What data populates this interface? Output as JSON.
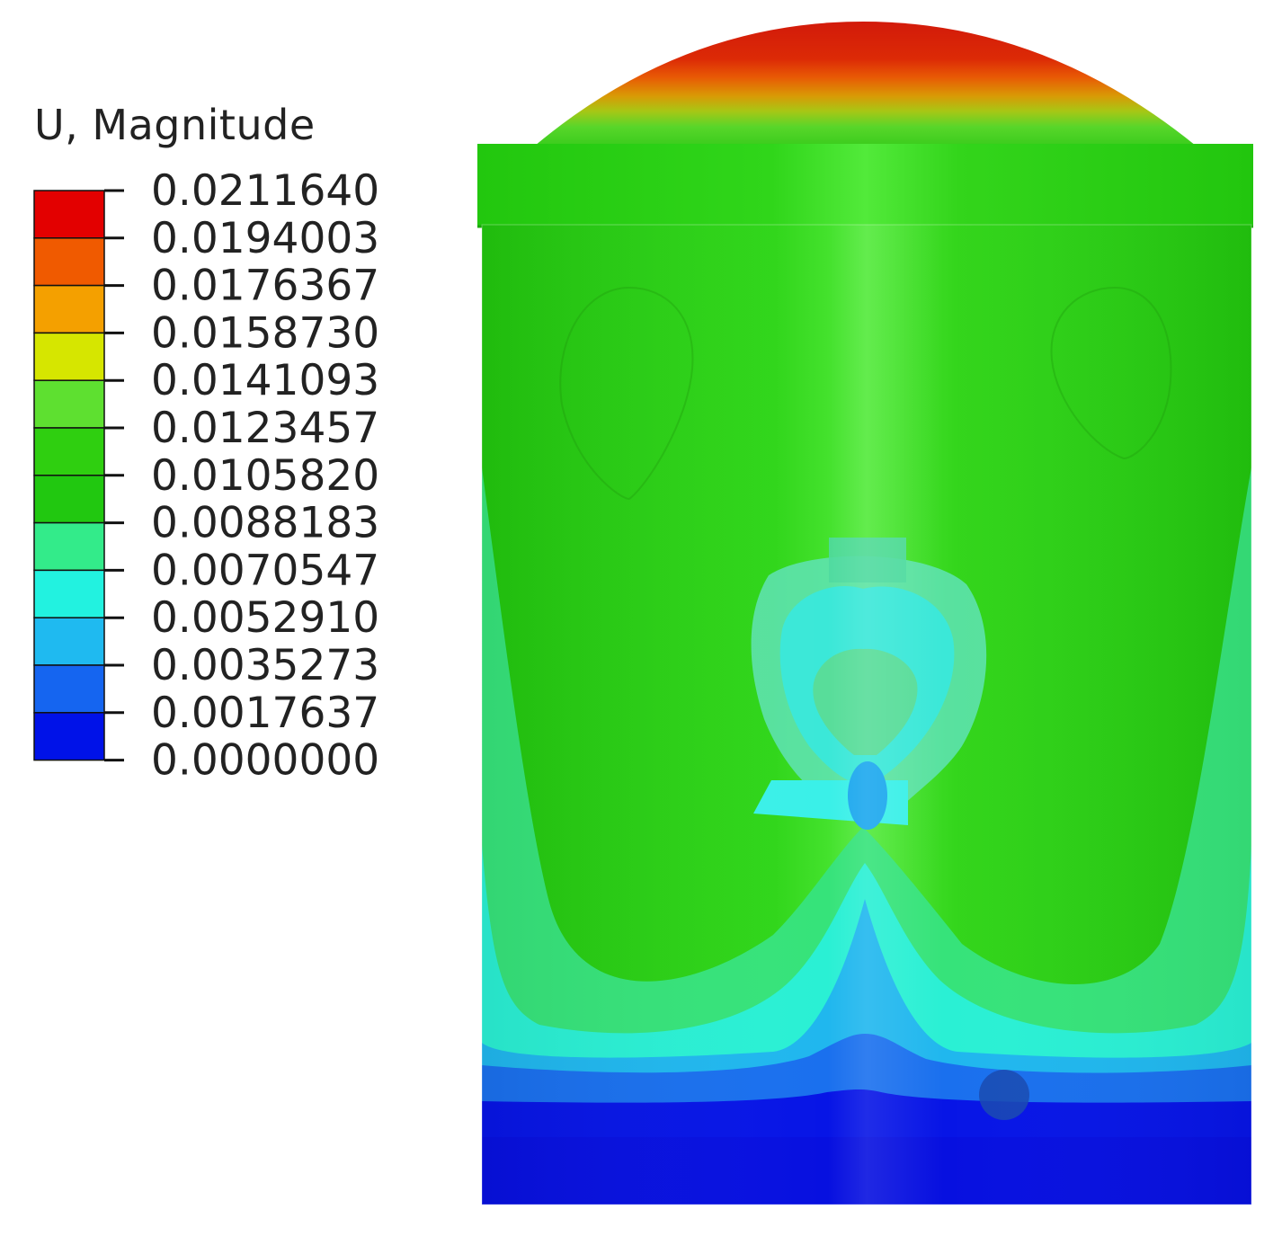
{
  "legend": {
    "title": "U, Magnitude",
    "values": [
      "0.0211640",
      "0.0194003",
      "0.0176367",
      "0.0158730",
      "0.0141093",
      "0.0123457",
      "0.0105820",
      "0.0088183",
      "0.0070547",
      "0.0052910",
      "0.0035273",
      "0.0017637",
      "0.0000000"
    ],
    "band_colors": [
      "#e30000",
      "#f05a00",
      "#f4a000",
      "#d6e600",
      "#5ee030",
      "#2fcf10",
      "#21c810",
      "#33eb8a",
      "#22f2e0",
      "#1fbaf0",
      "#1565f0",
      "#0012e8"
    ]
  }
}
